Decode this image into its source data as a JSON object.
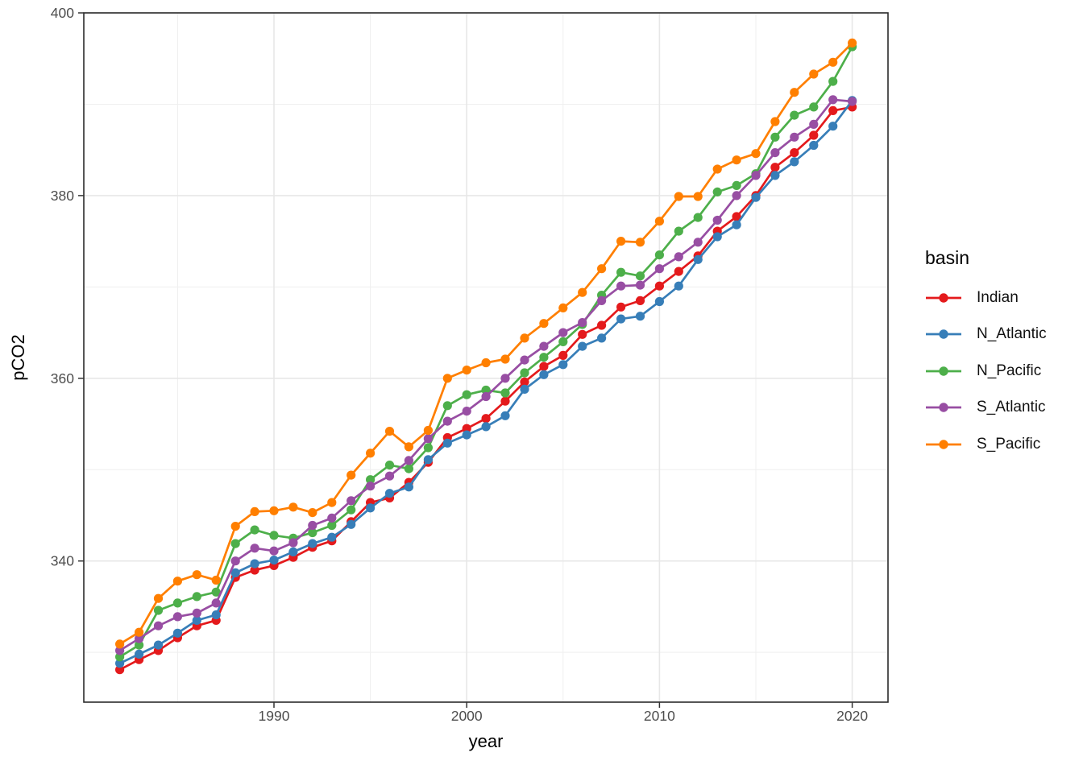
{
  "chart_data": {
    "type": "line",
    "title": "",
    "xlabel": "year",
    "ylabel": "pCO2",
    "legend_title": "basin",
    "legend_position": "right",
    "grid": "major+minor",
    "xlim": [
      1980.1,
      2021.9
    ],
    "ylim": [
      324.6,
      400
    ],
    "x_ticks": [
      1990,
      2000,
      2010,
      2020
    ],
    "x_tick_labels": [
      "1990",
      "2000",
      "2010",
      "2020"
    ],
    "x_minor_ticks": [
      1985,
      1995,
      2005,
      2015
    ],
    "y_ticks": [
      340,
      360,
      380,
      400
    ],
    "y_tick_labels": [
      "340",
      "360",
      "380",
      "400"
    ],
    "y_minor_ticks": [
      330,
      350,
      370,
      390
    ],
    "x": [
      1982,
      1983,
      1984,
      1985,
      1986,
      1987,
      1988,
      1989,
      1990,
      1991,
      1992,
      1993,
      1994,
      1995,
      1996,
      1997,
      1998,
      1999,
      2000,
      2001,
      2002,
      2003,
      2004,
      2005,
      2006,
      2007,
      2008,
      2009,
      2010,
      2011,
      2012,
      2013,
      2014,
      2015,
      2016,
      2017,
      2018,
      2019,
      2020
    ],
    "series": [
      {
        "name": "Indian",
        "color": "#E41A1C",
        "values": [
          328.1,
          329.2,
          330.2,
          331.6,
          332.9,
          333.5,
          338.2,
          339.0,
          339.5,
          340.4,
          341.5,
          342.2,
          344.3,
          346.4,
          346.9,
          348.6,
          350.8,
          353.5,
          354.5,
          355.6,
          357.5,
          359.6,
          361.3,
          362.5,
          364.8,
          365.8,
          367.8,
          368.5,
          370.1,
          371.7,
          373.4,
          376.1,
          377.7,
          380.0,
          383.1,
          384.7,
          386.6,
          389.3,
          389.7
        ]
      },
      {
        "name": "N_Atlantic",
        "color": "#377EB8",
        "values": [
          328.8,
          329.8,
          330.8,
          332.1,
          333.5,
          334.1,
          338.7,
          339.7,
          340.1,
          341.0,
          341.9,
          342.6,
          344.0,
          345.8,
          347.4,
          348.1,
          351.1,
          352.9,
          353.8,
          354.7,
          355.9,
          358.8,
          360.4,
          361.5,
          363.5,
          364.4,
          366.5,
          366.8,
          368.4,
          370.1,
          373.0,
          375.5,
          376.8,
          379.8,
          382.2,
          383.7,
          385.5,
          387.6,
          390.4
        ]
      },
      {
        "name": "N_Pacific",
        "color": "#4DAF4A",
        "values": [
          329.5,
          330.8,
          334.6,
          335.4,
          336.1,
          336.6,
          341.9,
          343.4,
          342.8,
          342.5,
          343.1,
          343.9,
          345.6,
          348.9,
          350.5,
          350.1,
          352.4,
          357.0,
          358.2,
          358.7,
          358.4,
          360.6,
          362.3,
          364.0,
          365.9,
          369.1,
          371.6,
          371.2,
          373.5,
          376.1,
          377.6,
          380.4,
          381.1,
          382.4,
          386.4,
          388.8,
          389.7,
          392.5,
          396.3
        ]
      },
      {
        "name": "S_Atlantic",
        "color": "#984EA3",
        "values": [
          330.2,
          331.5,
          332.9,
          333.9,
          334.3,
          335.4,
          340.0,
          341.4,
          341.1,
          342.0,
          343.9,
          344.7,
          346.6,
          348.2,
          349.3,
          351.0,
          353.4,
          355.3,
          356.4,
          358.0,
          360.0,
          362.0,
          363.5,
          365.0,
          366.1,
          368.5,
          370.1,
          370.2,
          372.0,
          373.3,
          374.9,
          377.3,
          380.0,
          382.2,
          384.7,
          386.4,
          387.8,
          390.5,
          390.3
        ]
      },
      {
        "name": "S_Pacific",
        "color": "#FF7F00",
        "values": [
          330.9,
          332.2,
          335.9,
          337.8,
          338.5,
          337.9,
          343.8,
          345.4,
          345.5,
          345.9,
          345.3,
          346.4,
          349.4,
          351.8,
          354.2,
          352.5,
          354.3,
          360.0,
          360.9,
          361.7,
          362.1,
          364.4,
          366.0,
          367.7,
          369.4,
          372.0,
          375.0,
          374.9,
          377.2,
          379.9,
          379.9,
          382.9,
          383.9,
          384.6,
          388.1,
          391.3,
          393.3,
          394.6,
          396.7
        ]
      }
    ],
    "style": {
      "panel_border": "#2b2b2b",
      "grid_major": "#e7e7e7",
      "grid_minor": "#efefef",
      "tick_color": "#333333",
      "point_radius": 5.6,
      "line_width": 2.7
    }
  }
}
